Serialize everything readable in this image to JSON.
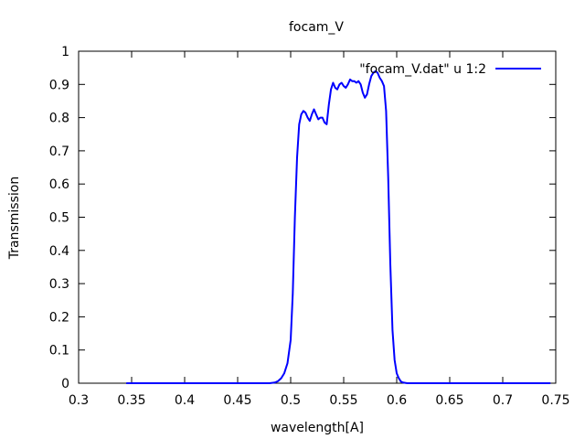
{
  "chart_data": {
    "type": "line",
    "title": "focam_V",
    "xlabel": "wavelength[A]",
    "ylabel": "Transmission",
    "xlim": [
      0.3,
      0.75
    ],
    "ylim": [
      0,
      1
    ],
    "xticks": [
      0.3,
      0.35,
      0.4,
      0.45,
      0.5,
      0.55,
      0.6,
      0.65,
      0.7,
      0.75
    ],
    "xtick_labels": [
      "0.3",
      "0.35",
      "0.4",
      "0.45",
      "0.5",
      "0.55",
      "0.6",
      "0.65",
      "0.7",
      "0.75"
    ],
    "yticks": [
      0,
      0.1,
      0.2,
      0.3,
      0.4,
      0.5,
      0.6,
      0.7,
      0.8,
      0.9,
      1
    ],
    "ytick_labels": [
      "0",
      "0.1",
      "0.2",
      "0.3",
      "0.4",
      "0.5",
      "0.6",
      "0.7",
      "0.8",
      "0.9",
      "1"
    ],
    "grid": false,
    "legend_position": "top-right",
    "series": [
      {
        "name": "\"focam_V.dat\" u 1:2",
        "color": "#0000ff",
        "x": [
          0.345,
          0.48,
          0.485,
          0.488,
          0.491,
          0.494,
          0.497,
          0.5,
          0.502,
          0.504,
          0.506,
          0.508,
          0.51,
          0.512,
          0.514,
          0.516,
          0.518,
          0.52,
          0.522,
          0.524,
          0.526,
          0.528,
          0.53,
          0.532,
          0.534,
          0.536,
          0.538,
          0.54,
          0.542,
          0.544,
          0.546,
          0.548,
          0.55,
          0.552,
          0.554,
          0.556,
          0.558,
          0.56,
          0.562,
          0.564,
          0.566,
          0.568,
          0.57,
          0.572,
          0.574,
          0.576,
          0.578,
          0.58,
          0.582,
          0.584,
          0.586,
          0.588,
          0.59,
          0.592,
          0.594,
          0.596,
          0.598,
          0.6,
          0.602,
          0.604,
          0.606,
          0.61,
          0.745
        ],
        "y": [
          0.0,
          0.0,
          0.002,
          0.006,
          0.015,
          0.03,
          0.06,
          0.13,
          0.27,
          0.5,
          0.68,
          0.78,
          0.81,
          0.82,
          0.815,
          0.8,
          0.79,
          0.81,
          0.825,
          0.81,
          0.795,
          0.8,
          0.8,
          0.785,
          0.78,
          0.84,
          0.885,
          0.905,
          0.89,
          0.885,
          0.9,
          0.905,
          0.895,
          0.89,
          0.9,
          0.915,
          0.91,
          0.91,
          0.905,
          0.91,
          0.9,
          0.875,
          0.86,
          0.87,
          0.9,
          0.925,
          0.935,
          0.94,
          0.935,
          0.92,
          0.91,
          0.895,
          0.82,
          0.62,
          0.36,
          0.16,
          0.07,
          0.03,
          0.015,
          0.005,
          0.002,
          0.0,
          0.0
        ]
      }
    ]
  }
}
